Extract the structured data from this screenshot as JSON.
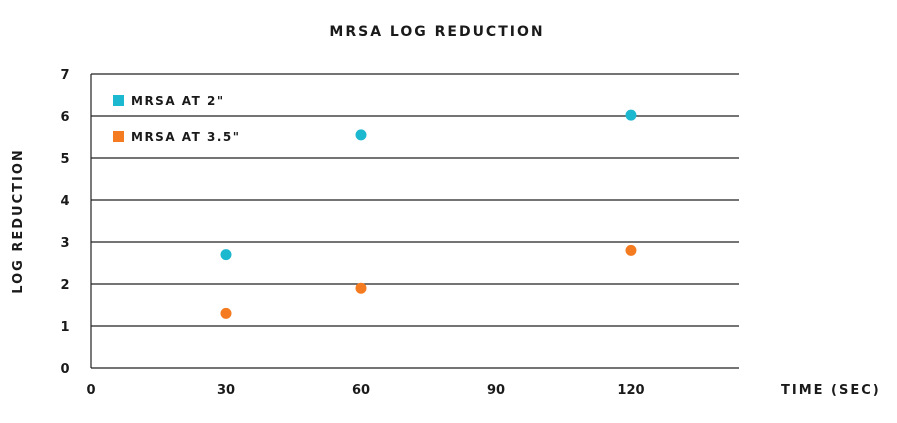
{
  "chart_data": {
    "type": "scatter",
    "title": "MRSA LOG REDUCTION",
    "xlabel": "TIME (SEC)",
    "ylabel": "LOG REDUCTION",
    "x_ticks": [
      "0",
      "30",
      "60",
      "90",
      "120"
    ],
    "y_ticks": [
      "0",
      "1",
      "2",
      "3",
      "4",
      "5",
      "6",
      "7"
    ],
    "xlim": [
      0,
      144
    ],
    "ylim": [
      0,
      7
    ],
    "grid": true,
    "legend_position": "top-left",
    "series": [
      {
        "name": "MRSA AT 2\"",
        "color": "#1bb8d0",
        "points": [
          {
            "x": 30,
            "y": 2.7
          },
          {
            "x": 60,
            "y": 5.55
          },
          {
            "x": 120,
            "y": 6.02
          }
        ]
      },
      {
        "name": "MRSA AT 3.5\"",
        "color": "#f47b20",
        "points": [
          {
            "x": 30,
            "y": 1.3
          },
          {
            "x": 60,
            "y": 1.9
          },
          {
            "x": 120,
            "y": 2.8
          }
        ]
      }
    ]
  }
}
